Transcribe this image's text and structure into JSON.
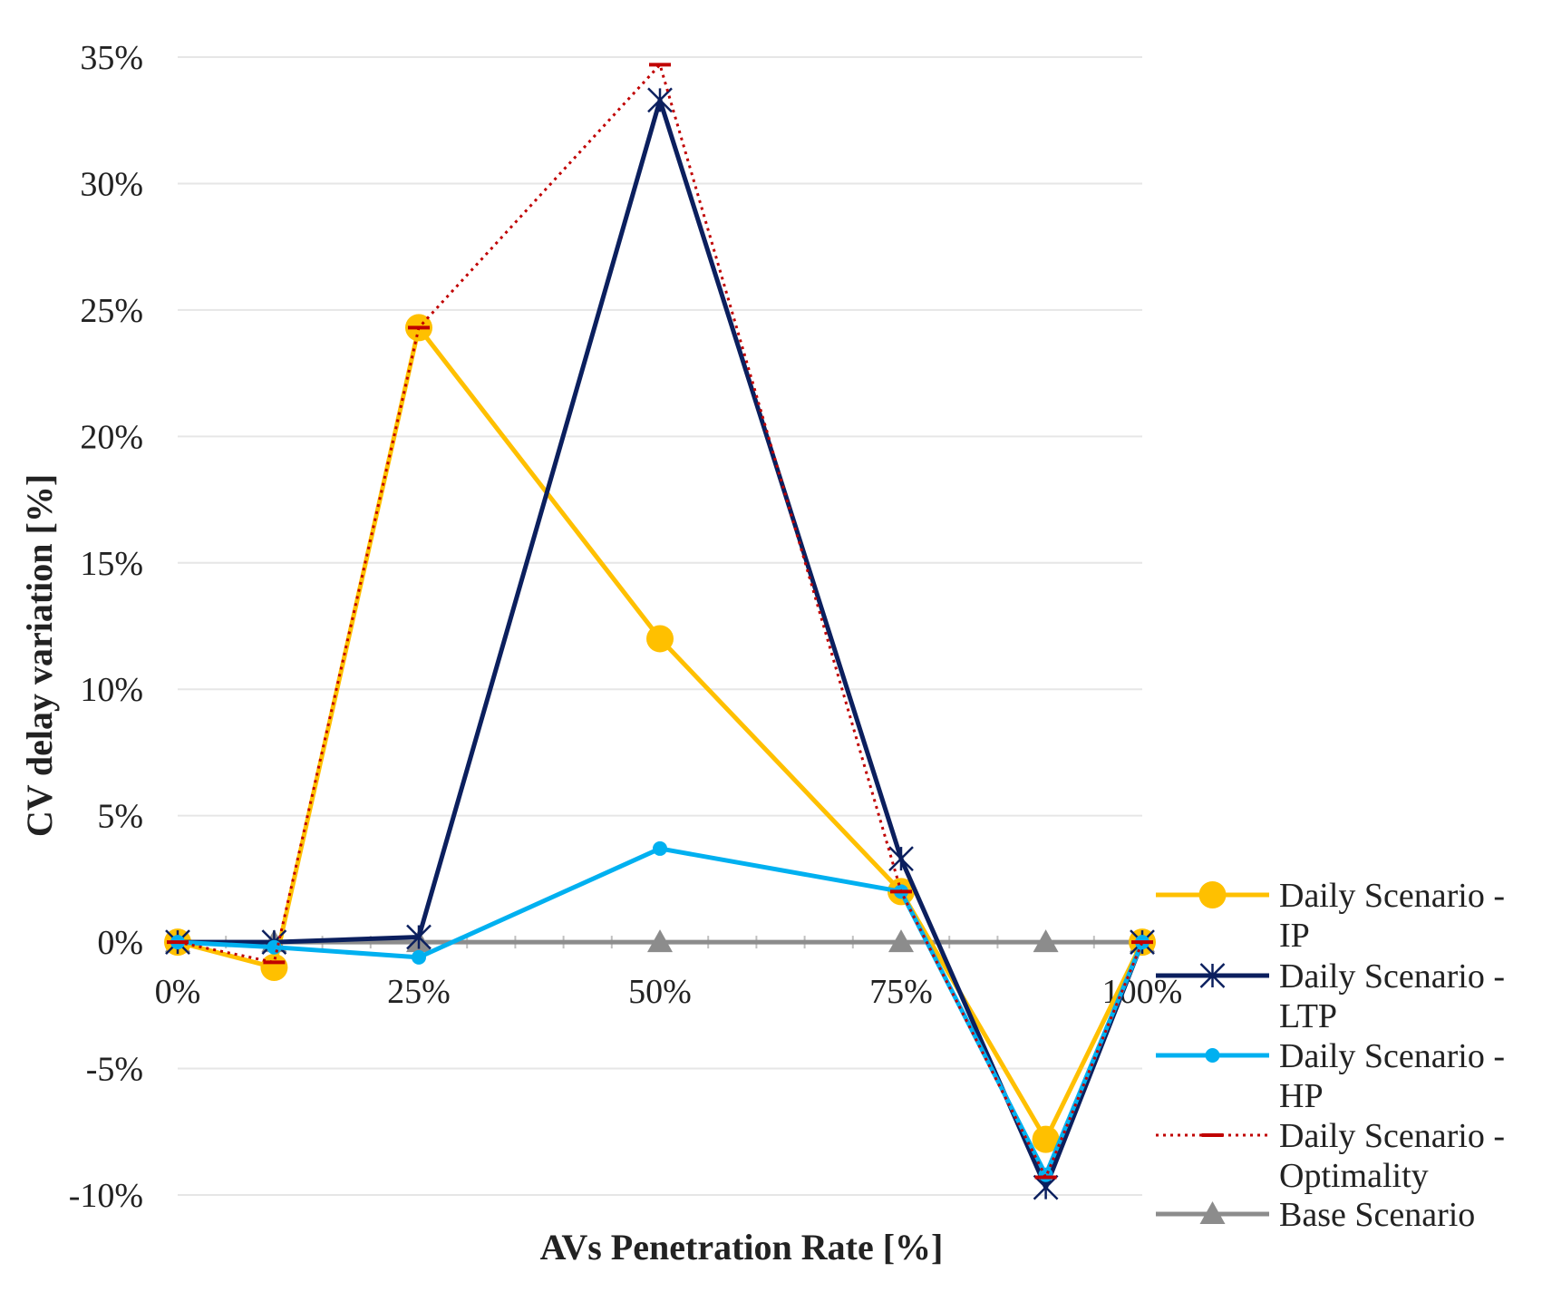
{
  "chart_data": {
    "type": "line",
    "title": "",
    "xlabel": "AVs Penetration Rate [%]",
    "ylabel": "CV delay variation [%]",
    "x": [
      0,
      10,
      25,
      50,
      75,
      90,
      100
    ],
    "xticks": [
      0,
      25,
      50,
      75,
      100
    ],
    "xtick_labels": [
      "0%",
      "25%",
      "50%",
      "75%",
      "100%"
    ],
    "xlim": [
      0,
      100
    ],
    "ylim": [
      -10,
      35
    ],
    "yticks": [
      -10,
      -5,
      0,
      5,
      10,
      15,
      20,
      25,
      30,
      35
    ],
    "ytick_labels": [
      "-10%",
      "-5%",
      "0%",
      "5%",
      "10%",
      "15%",
      "20%",
      "25%",
      "30%",
      "35%"
    ],
    "grid": true,
    "legend_position": "right",
    "series": [
      {
        "name": "Daily Scenario - IP",
        "legend_lines": [
          "Daily Scenario -",
          "IP"
        ],
        "color": "#FFC000",
        "marker": "circle",
        "dash": "solid",
        "values": [
          0,
          -1,
          24.3,
          12,
          2,
          -7.8,
          0
        ]
      },
      {
        "name": "Daily Scenario - LTP",
        "legend_lines": [
          "Daily Scenario -",
          "LTP"
        ],
        "color": "#0B1F5E",
        "marker": "star",
        "dash": "solid",
        "values": [
          0,
          0,
          0.2,
          33.3,
          3.3,
          -9.7,
          0
        ]
      },
      {
        "name": "Daily Scenario - HP",
        "legend_lines": [
          "Daily Scenario -",
          "HP"
        ],
        "color": "#00B0F0",
        "marker": "dot",
        "dash": "solid",
        "values": [
          0,
          -0.2,
          -0.6,
          3.7,
          2,
          -9.2,
          0
        ]
      },
      {
        "name": "Daily Scenario - Optimality",
        "legend_lines": [
          "Daily Scenario -",
          "Optimality"
        ],
        "color": "#C00000",
        "marker": "dash",
        "dash": "dotted",
        "values": [
          0,
          -0.8,
          24.3,
          34.7,
          2,
          -9.3,
          0
        ]
      },
      {
        "name": "Base Scenario",
        "legend_lines": [
          "Base Scenario"
        ],
        "color": "#8C8C8C",
        "marker": "triangle",
        "dash": "solid",
        "values": [
          0,
          0,
          0,
          0,
          0,
          0,
          0
        ]
      }
    ]
  }
}
